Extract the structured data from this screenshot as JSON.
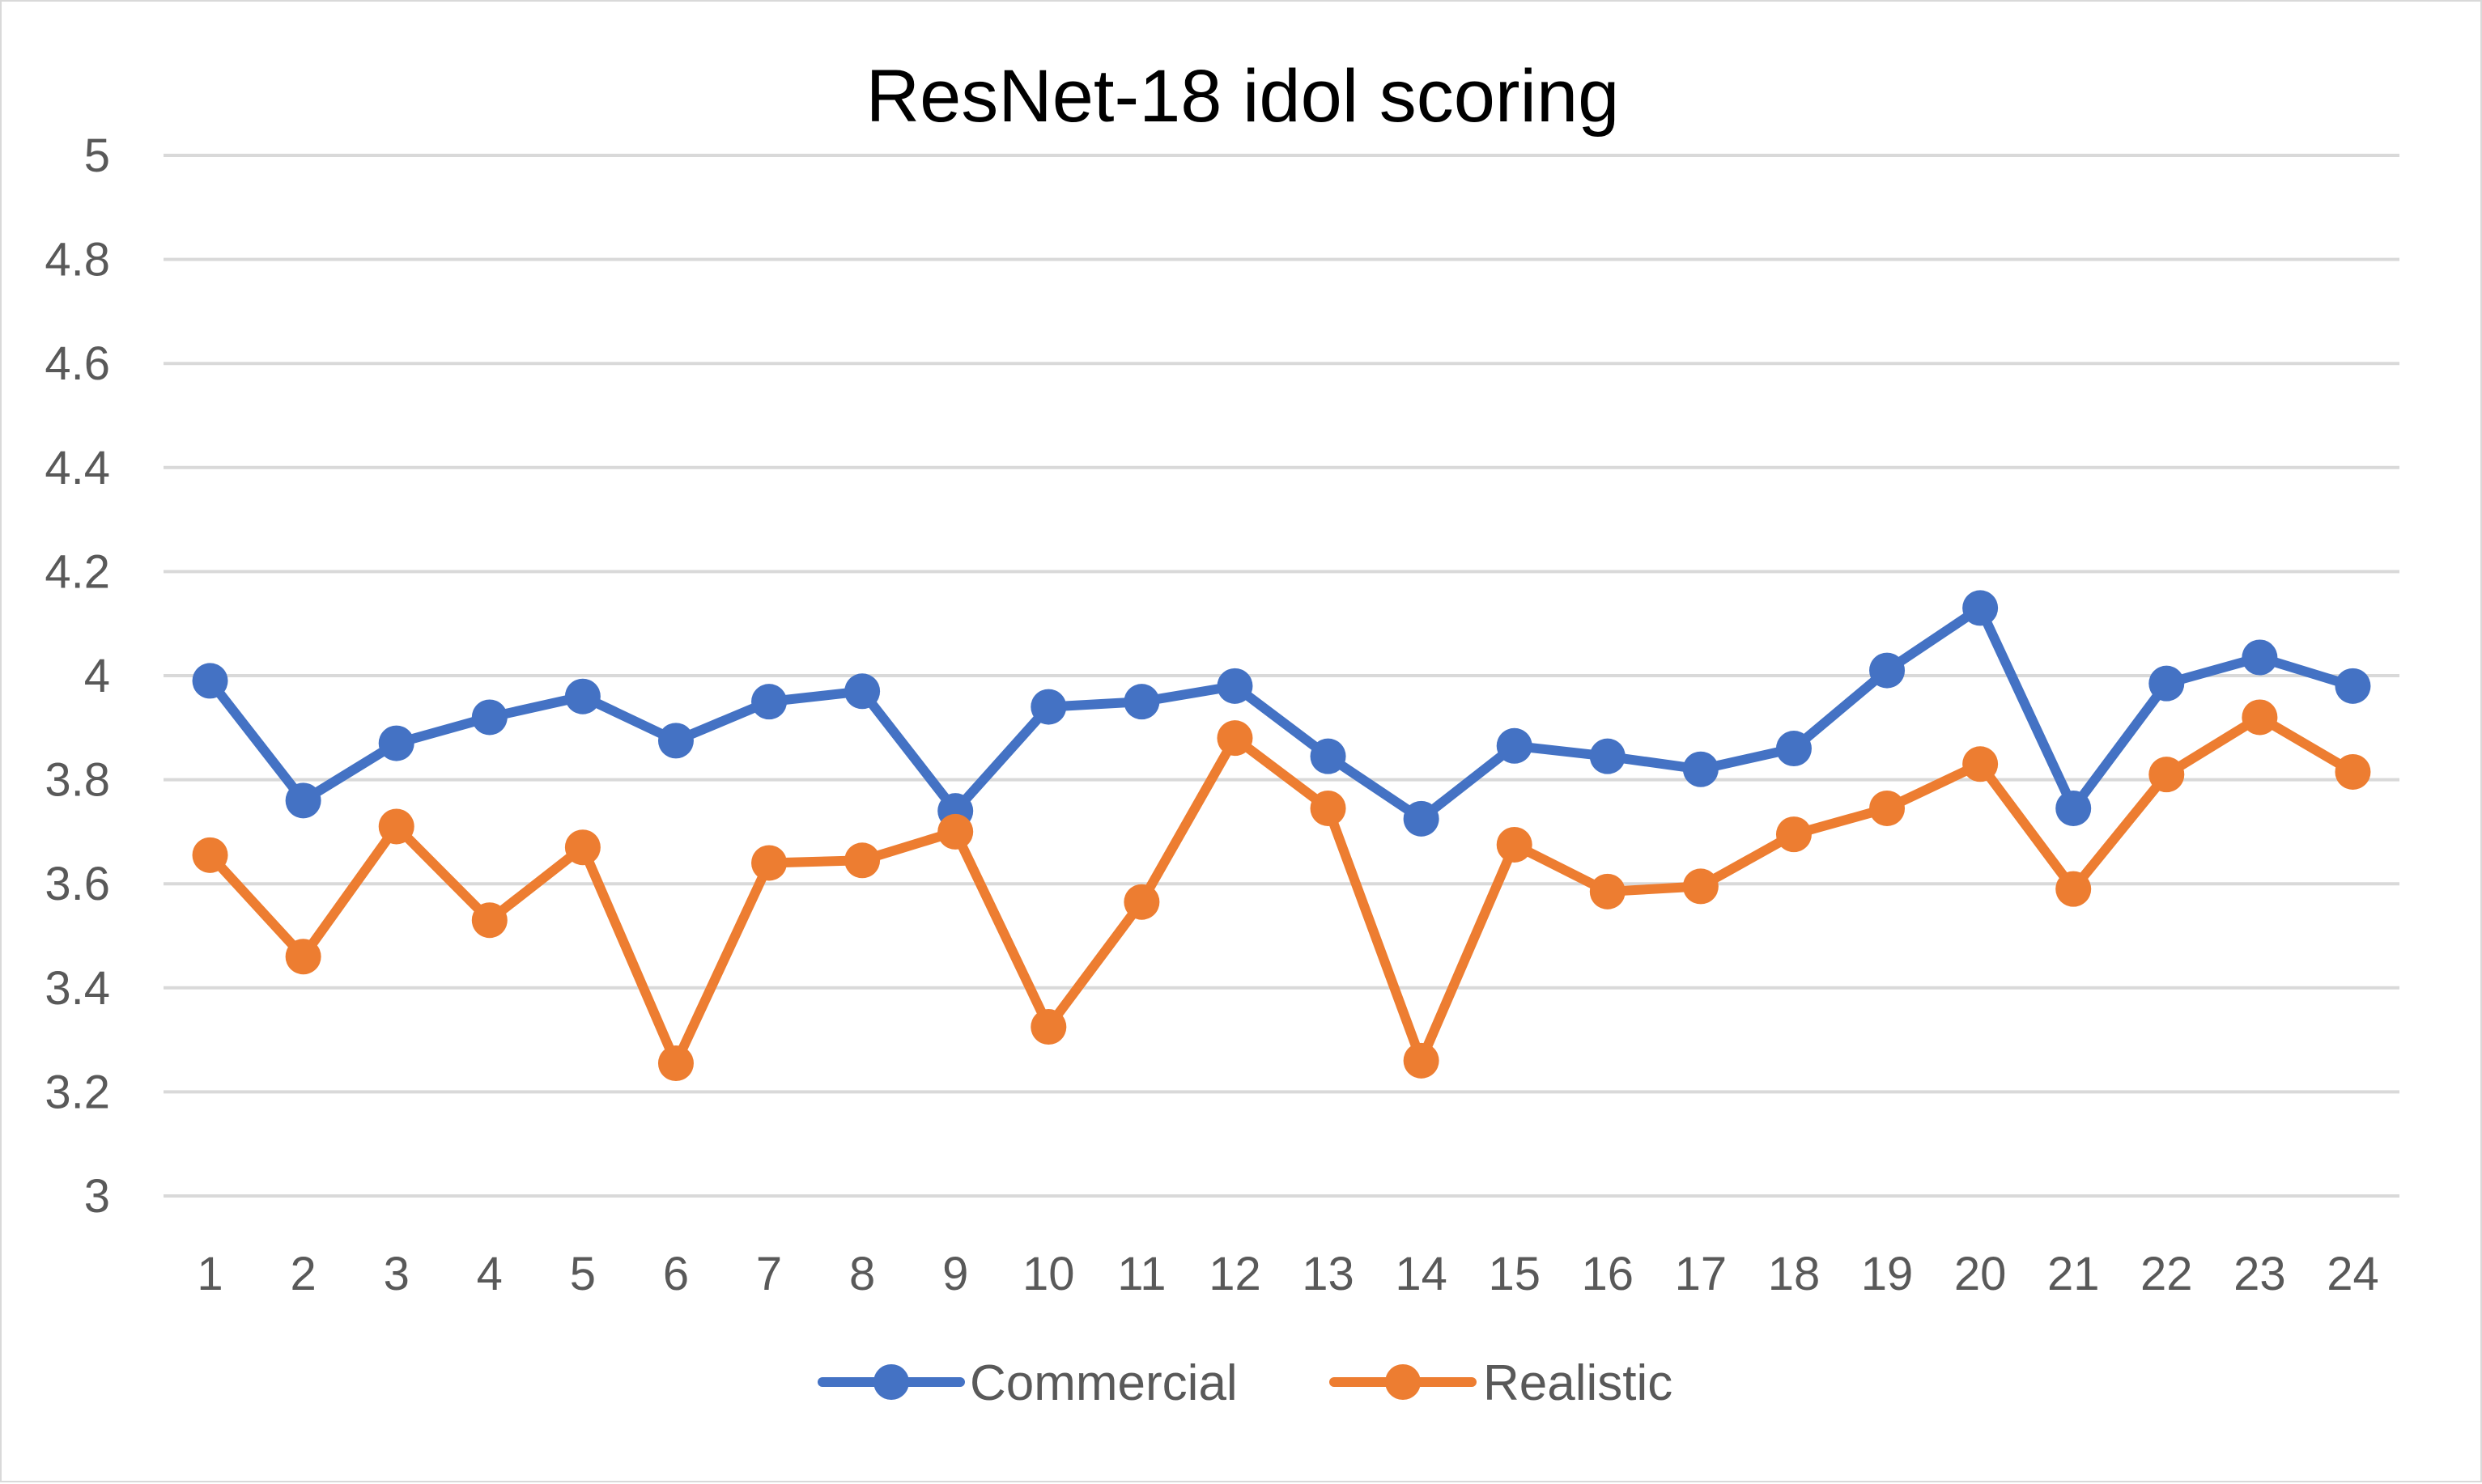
{
  "chart_data": {
    "type": "line",
    "title": "ResNet-18 idol scoring",
    "xlabel": "",
    "ylabel": "",
    "categories": [
      "1",
      "2",
      "3",
      "4",
      "5",
      "6",
      "7",
      "8",
      "9",
      "10",
      "11",
      "12",
      "13",
      "14",
      "15",
      "16",
      "17",
      "18",
      "19",
      "20",
      "21",
      "22",
      "23",
      "24"
    ],
    "ylim": [
      3,
      5
    ],
    "yticks": [
      "3",
      "3.2",
      "3.4",
      "3.6",
      "3.8",
      "4",
      "4.2",
      "4.4",
      "4.6",
      "4.8",
      "5"
    ],
    "grid": true,
    "legend": "bottom",
    "series": [
      {
        "name": "Commercial",
        "color": "#4472c4",
        "values": [
          3.99,
          3.76,
          3.87,
          3.92,
          3.96,
          3.875,
          3.95,
          3.97,
          3.74,
          3.94,
          3.95,
          3.98,
          3.845,
          3.725,
          3.865,
          3.845,
          3.82,
          3.86,
          4.01,
          4.13,
          3.745,
          3.985,
          4.035,
          3.98
        ]
      },
      {
        "name": "Realistic",
        "color": "#ed7d31",
        "values": [
          3.655,
          3.46,
          3.71,
          3.53,
          3.67,
          3.255,
          3.64,
          3.645,
          3.7,
          3.325,
          3.565,
          3.88,
          3.745,
          3.26,
          3.675,
          3.585,
          3.595,
          3.695,
          3.745,
          3.83,
          3.59,
          3.81,
          3.92,
          3.815
        ]
      }
    ]
  }
}
